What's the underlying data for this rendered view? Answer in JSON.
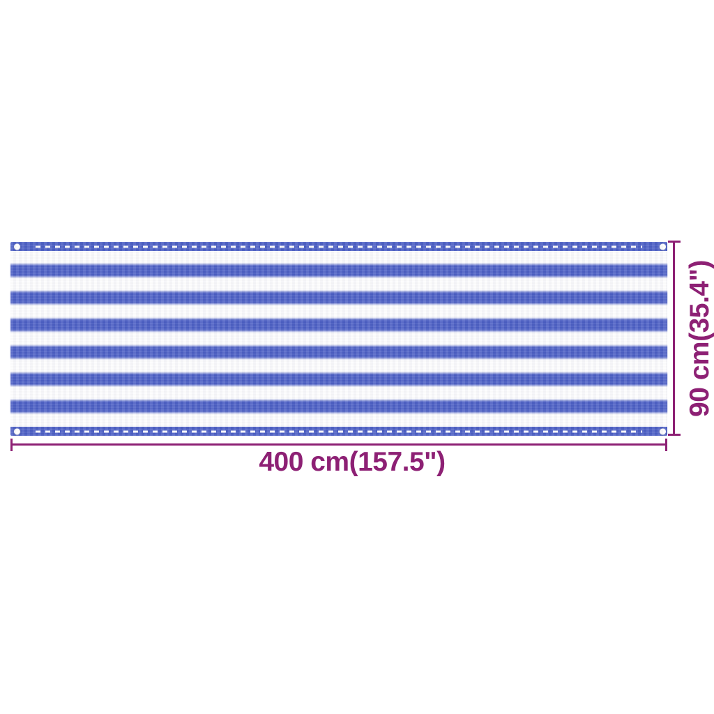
{
  "diagram": {
    "subject": "balcony privacy screen, blue and white striped HDPE fabric",
    "width_dimension": {
      "label": "400 cm(157.5\")"
    },
    "height_dimension": {
      "label": "90 cm(35.4\")"
    },
    "colors": {
      "stripe_blue": "#4d60c5",
      "fabric_white": "#fdfdfe",
      "dimension_purple": "#8d2074",
      "background": "#ffffff"
    },
    "fabric": {
      "blue_stripe_count": 6,
      "hem_band_count": 2,
      "grommet_count": 4,
      "stitch_style": "white dashed stitch line along each hem"
    }
  }
}
